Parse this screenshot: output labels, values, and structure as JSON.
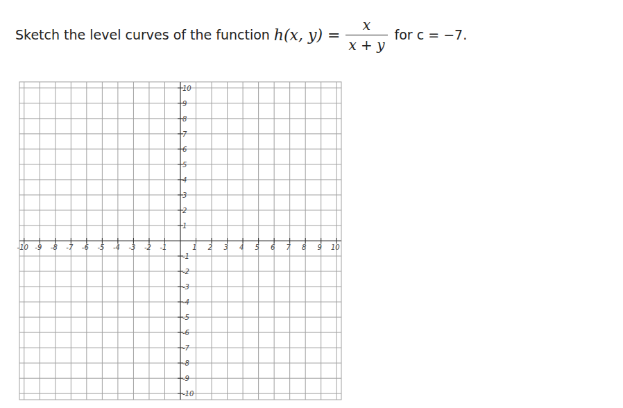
{
  "chart_data": {
    "type": "line",
    "title": "Sketch the level curves of the function",
    "annotations": [
      "h(x, y) =",
      "x",
      "x + y",
      "for c = −7."
    ],
    "xlim": [
      -10.3,
      10.3
    ],
    "ylim": [
      -10.4,
      10.4
    ],
    "xticks": [
      -10,
      -9,
      -8,
      -7,
      -6,
      -5,
      -4,
      -3,
      -2,
      -1,
      1,
      2,
      3,
      4,
      5,
      6,
      7,
      8,
      9,
      10
    ],
    "yticks": [
      -10,
      -9,
      -8,
      -7,
      -6,
      -5,
      -4,
      -3,
      -2,
      -1,
      1,
      2,
      3,
      4,
      5,
      6,
      7,
      8,
      9,
      10
    ],
    "grid": true
  }
}
